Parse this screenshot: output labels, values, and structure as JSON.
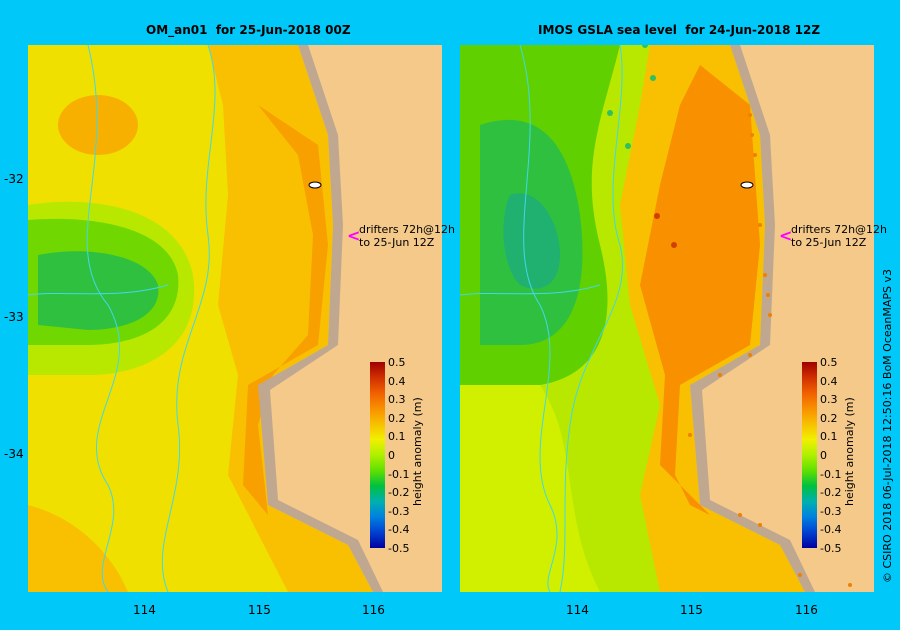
{
  "panels": [
    {
      "title": "OM_an01  for 25-Jun-2018 00Z"
    },
    {
      "title": "IMOS GSLA sea level  for 24-Jun-2018 12Z"
    }
  ],
  "lat_ticks": [
    "-32",
    "-33",
    "-34"
  ],
  "lon_ticks": [
    "114",
    "115",
    "116"
  ],
  "drifters": {
    "line1": "drifters 72h@12h",
    "line2": "to 25-Jun 12Z",
    "arrow": "<"
  },
  "colorbar": {
    "label": "height anomaly (m)",
    "ticks": [
      "0.5",
      "0.4",
      "0.3",
      "0.2",
      "0.1",
      "0",
      "-0.1",
      "-0.2",
      "-0.3",
      "-0.4",
      "-0.5"
    ],
    "colors": [
      "#a00000",
      "#d03000",
      "#f06000",
      "#f89000",
      "#f8c000",
      "#f0f000",
      "#b0f000",
      "#60e000",
      "#00c040",
      "#00b0b0",
      "#0080e0",
      "#0040d0",
      "#0000a0"
    ]
  },
  "credit": "© CSIRO 2018   06-Jul-2018 12:50:16 BoM OceanMAPS v3",
  "colors": {
    "land": "#f4c98a",
    "coast": "#c0a890",
    "river": "#40d8e8",
    "background": "#00c8f8"
  }
}
